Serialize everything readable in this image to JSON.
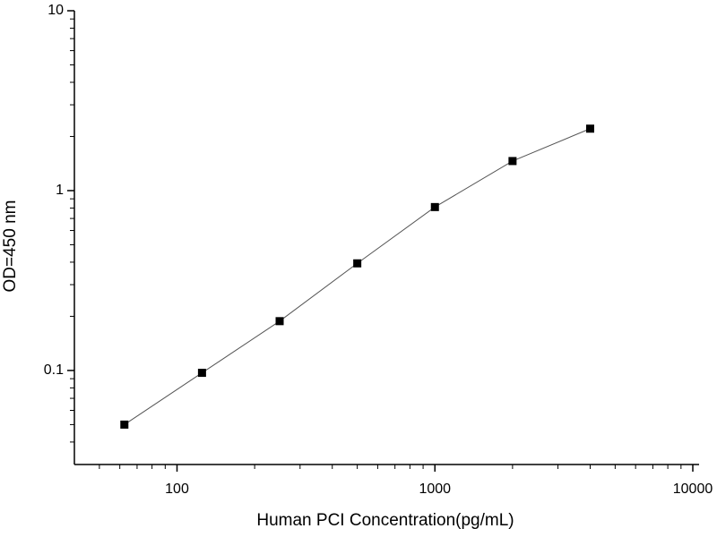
{
  "chart_data": {
    "type": "scatter",
    "x_label": "Human PCI Concentration(pg/mL)",
    "y_label": "OD=450 nm",
    "xscale": "log",
    "yscale": "log",
    "x": [
      62.5,
      125,
      250,
      500,
      1000,
      2000,
      4000
    ],
    "series": [
      {
        "values": [
          0.05,
          0.097,
          0.188,
          0.394,
          0.81,
          1.46,
          2.21
        ],
        "color": "#000000"
      }
    ],
    "line_color": "#555555",
    "xlim": [
      40,
      10000
    ],
    "ylim": [
      0.03,
      10
    ],
    "xticks": [
      100,
      1000,
      10000
    ],
    "yticks": [
      0.1,
      1,
      10
    ],
    "xminorticks": [
      50,
      60,
      70,
      80,
      90,
      200,
      300,
      400,
      500,
      600,
      700,
      800,
      900,
      2000,
      3000,
      4000,
      5000,
      6000,
      7000,
      8000,
      9000
    ],
    "yminorticks": [
      0.04,
      0.05,
      0.06,
      0.07,
      0.08,
      0.09,
      0.2,
      0.3,
      0.4,
      0.5,
      0.6,
      0.7,
      0.8,
      0.9,
      2,
      3,
      4,
      5,
      6,
      7,
      8,
      9
    ],
    "grid": false
  }
}
